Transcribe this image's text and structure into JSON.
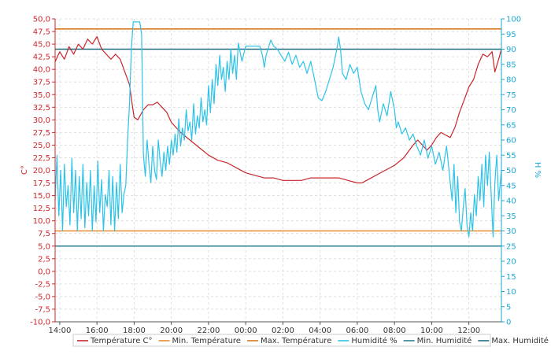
{
  "chart_data": {
    "type": "line",
    "ylabel_left": "C°",
    "ylabel_right": "H %",
    "ylim_left": [
      -10,
      50
    ],
    "ylim_right": [
      0,
      100
    ],
    "yticks_left": [
      "50,0",
      "47,5",
      "45,0",
      "42,5",
      "40,0",
      "37,5",
      "35,0",
      "32,5",
      "30,0",
      "27,5",
      "25,0",
      "22,5",
      "20,0",
      "17,5",
      "15,0",
      "12,5",
      "10,0",
      "7,5",
      "5,0",
      "2,5",
      "0,0",
      "-2,5",
      "-5,0",
      "-7,5",
      "-10,0"
    ],
    "yticks_right": [
      "100",
      "95",
      "90",
      "85",
      "80",
      "75",
      "70",
      "65",
      "60",
      "55",
      "50",
      "45",
      "40",
      "35",
      "30",
      "25",
      "20",
      "15",
      "10",
      "5",
      "0"
    ],
    "xlim_hours": [
      13.75,
      37.75
    ],
    "xticks": [
      {
        "hour": 14,
        "label": "14:00"
      },
      {
        "hour": 16,
        "label": "16:00"
      },
      {
        "hour": 18,
        "label": "18:00"
      },
      {
        "hour": 20,
        "label": "20:00"
      },
      {
        "hour": 22,
        "label": "22:00"
      },
      {
        "hour": 24,
        "label": "00:00"
      },
      {
        "hour": 26,
        "label": "02:00"
      },
      {
        "hour": 28,
        "label": "04:00"
      },
      {
        "hour": 30,
        "label": "06:00"
      },
      {
        "hour": 32,
        "label": "08:00"
      },
      {
        "hour": 34,
        "label": "10:00"
      },
      {
        "hour": 36,
        "label": "12:00"
      }
    ],
    "grid": true,
    "legend_position": "bottom",
    "series": [
      {
        "name": "Température C°",
        "axis": "left",
        "color": "#c7252b",
        "kind": "line",
        "points": [
          [
            13.75,
            41.5
          ],
          [
            14.0,
            43.5
          ],
          [
            14.25,
            42.0
          ],
          [
            14.5,
            44.5
          ],
          [
            14.75,
            43.0
          ],
          [
            15.0,
            45.0
          ],
          [
            15.25,
            44.0
          ],
          [
            15.5,
            46.0
          ],
          [
            15.75,
            45.0
          ],
          [
            16.0,
            46.5
          ],
          [
            16.25,
            44.0
          ],
          [
            16.5,
            43.0
          ],
          [
            16.75,
            42.0
          ],
          [
            17.0,
            43.0
          ],
          [
            17.25,
            42.0
          ],
          [
            17.5,
            39.5
          ],
          [
            17.75,
            37.0
          ],
          [
            17.9,
            33.0
          ],
          [
            18.0,
            30.5
          ],
          [
            18.2,
            30.0
          ],
          [
            18.5,
            32.0
          ],
          [
            18.75,
            33.0
          ],
          [
            19.0,
            33.0
          ],
          [
            19.25,
            33.5
          ],
          [
            19.5,
            32.5
          ],
          [
            19.75,
            31.5
          ],
          [
            20.0,
            29.5
          ],
          [
            20.5,
            27.5
          ],
          [
            21.0,
            26.0
          ],
          [
            21.5,
            24.5
          ],
          [
            22.0,
            23.0
          ],
          [
            22.5,
            22.0
          ],
          [
            23.0,
            21.5
          ],
          [
            23.5,
            20.5
          ],
          [
            24.0,
            19.5
          ],
          [
            24.5,
            19.0
          ],
          [
            25.0,
            18.5
          ],
          [
            25.5,
            18.5
          ],
          [
            26.0,
            18.0
          ],
          [
            26.5,
            18.0
          ],
          [
            27.0,
            18.0
          ],
          [
            27.5,
            18.5
          ],
          [
            28.0,
            18.5
          ],
          [
            28.5,
            18.5
          ],
          [
            29.0,
            18.5
          ],
          [
            29.5,
            18.0
          ],
          [
            30.0,
            17.5
          ],
          [
            30.25,
            17.5
          ],
          [
            30.5,
            18.0
          ],
          [
            31.0,
            19.0
          ],
          [
            31.5,
            20.0
          ],
          [
            32.0,
            21.0
          ],
          [
            32.5,
            22.5
          ],
          [
            33.0,
            25.0
          ],
          [
            33.25,
            26.0
          ],
          [
            33.5,
            25.0
          ],
          [
            33.75,
            24.0
          ],
          [
            34.0,
            25.0
          ],
          [
            34.25,
            26.5
          ],
          [
            34.5,
            27.5
          ],
          [
            34.75,
            27.0
          ],
          [
            35.0,
            26.5
          ],
          [
            35.25,
            28.5
          ],
          [
            35.5,
            31.5
          ],
          [
            35.75,
            34.0
          ],
          [
            36.0,
            36.5
          ],
          [
            36.25,
            38.0
          ],
          [
            36.5,
            41.0
          ],
          [
            36.75,
            43.0
          ],
          [
            37.0,
            42.5
          ],
          [
            37.25,
            43.5
          ],
          [
            37.4,
            39.5
          ],
          [
            37.6,
            42.0
          ],
          [
            37.75,
            44.0
          ]
        ]
      },
      {
        "name": "Min. Température",
        "axis": "left",
        "color": "#e88a2e",
        "kind": "hline",
        "value": 8.0
      },
      {
        "name": "Max. Température",
        "axis": "left",
        "color": "#d9781e",
        "kind": "hline",
        "value": 48.0
      },
      {
        "name": "Humidité %",
        "axis": "right",
        "color": "#2cc3e8",
        "kind": "line",
        "points": [
          [
            13.75,
            40
          ],
          [
            13.85,
            55
          ],
          [
            13.95,
            35
          ],
          [
            14.05,
            50
          ],
          [
            14.15,
            30
          ],
          [
            14.25,
            52
          ],
          [
            14.35,
            38
          ],
          [
            14.45,
            45
          ],
          [
            14.55,
            32
          ],
          [
            14.65,
            54
          ],
          [
            14.75,
            36
          ],
          [
            14.85,
            50
          ],
          [
            14.95,
            30
          ],
          [
            15.05,
            48
          ],
          [
            15.15,
            34
          ],
          [
            15.25,
            52
          ],
          [
            15.35,
            31
          ],
          [
            15.45,
            46
          ],
          [
            15.55,
            35
          ],
          [
            15.65,
            50
          ],
          [
            15.75,
            30
          ],
          [
            15.85,
            45
          ],
          [
            15.95,
            33
          ],
          [
            16.05,
            53
          ],
          [
            16.15,
            36
          ],
          [
            16.25,
            47
          ],
          [
            16.35,
            30
          ],
          [
            16.45,
            42
          ],
          [
            16.55,
            38
          ],
          [
            16.65,
            50
          ],
          [
            16.75,
            32
          ],
          [
            16.85,
            48
          ],
          [
            16.95,
            30
          ],
          [
            17.05,
            46
          ],
          [
            17.15,
            34
          ],
          [
            17.25,
            52
          ],
          [
            17.35,
            36
          ],
          [
            17.45,
            42
          ],
          [
            17.55,
            45
          ],
          [
            17.65,
            60
          ],
          [
            17.75,
            72
          ],
          [
            17.85,
            90
          ],
          [
            17.95,
            99
          ],
          [
            18.1,
            99
          ],
          [
            18.3,
            99
          ],
          [
            18.4,
            95
          ],
          [
            18.5,
            55
          ],
          [
            18.6,
            48
          ],
          [
            18.7,
            60
          ],
          [
            18.8,
            52
          ],
          [
            18.9,
            46
          ],
          [
            19.0,
            58
          ],
          [
            19.1,
            50
          ],
          [
            19.2,
            47
          ],
          [
            19.3,
            60
          ],
          [
            19.4,
            53
          ],
          [
            19.5,
            48
          ],
          [
            19.6,
            56
          ],
          [
            19.7,
            50
          ],
          [
            19.8,
            58
          ],
          [
            19.9,
            52
          ],
          [
            20.0,
            60
          ],
          [
            20.1,
            55
          ],
          [
            20.2,
            62
          ],
          [
            20.3,
            56
          ],
          [
            20.4,
            67
          ],
          [
            20.5,
            58
          ],
          [
            20.6,
            64
          ],
          [
            20.7,
            60
          ],
          [
            20.8,
            70
          ],
          [
            20.9,
            63
          ],
          [
            21.0,
            66
          ],
          [
            21.1,
            60
          ],
          [
            21.2,
            72
          ],
          [
            21.3,
            62
          ],
          [
            21.4,
            68
          ],
          [
            21.5,
            64
          ],
          [
            21.6,
            74
          ],
          [
            21.7,
            66
          ],
          [
            21.8,
            70
          ],
          [
            21.9,
            65
          ],
          [
            22.0,
            78
          ],
          [
            22.1,
            69
          ],
          [
            22.2,
            80
          ],
          [
            22.3,
            72
          ],
          [
            22.4,
            85
          ],
          [
            22.5,
            78
          ],
          [
            22.6,
            88
          ],
          [
            22.7,
            80
          ],
          [
            22.8,
            84
          ],
          [
            22.9,
            76
          ],
          [
            23.0,
            86
          ],
          [
            23.1,
            80
          ],
          [
            23.2,
            90
          ],
          [
            23.3,
            82
          ],
          [
            23.4,
            88
          ],
          [
            23.5,
            80
          ],
          [
            23.6,
            92
          ],
          [
            23.8,
            86
          ],
          [
            24.0,
            91
          ],
          [
            24.25,
            91
          ],
          [
            24.5,
            91
          ],
          [
            24.75,
            91
          ],
          [
            24.9,
            88
          ],
          [
            25.0,
            84
          ],
          [
            25.1,
            88
          ],
          [
            25.2,
            90
          ],
          [
            25.35,
            93
          ],
          [
            25.5,
            91
          ],
          [
            25.7,
            90
          ],
          [
            25.9,
            88
          ],
          [
            26.1,
            86
          ],
          [
            26.3,
            89
          ],
          [
            26.5,
            85
          ],
          [
            26.7,
            88
          ],
          [
            26.9,
            84
          ],
          [
            27.1,
            86
          ],
          [
            27.3,
            82
          ],
          [
            27.5,
            86
          ],
          [
            27.7,
            80
          ],
          [
            27.9,
            74
          ],
          [
            28.1,
            73
          ],
          [
            28.3,
            76
          ],
          [
            28.5,
            80
          ],
          [
            28.7,
            84
          ],
          [
            28.9,
            90
          ],
          [
            29.0,
            94
          ],
          [
            29.1,
            90
          ],
          [
            29.2,
            82
          ],
          [
            29.4,
            80
          ],
          [
            29.6,
            85
          ],
          [
            29.8,
            82
          ],
          [
            30.0,
            84
          ],
          [
            30.2,
            76
          ],
          [
            30.4,
            72
          ],
          [
            30.6,
            70
          ],
          [
            30.8,
            74
          ],
          [
            31.0,
            78
          ],
          [
            31.1,
            70
          ],
          [
            31.2,
            66
          ],
          [
            31.4,
            72
          ],
          [
            31.6,
            68
          ],
          [
            31.8,
            76
          ],
          [
            32.0,
            70
          ],
          [
            32.1,
            64
          ],
          [
            32.2,
            66
          ],
          [
            32.4,
            62
          ],
          [
            32.6,
            64
          ],
          [
            32.8,
            60
          ],
          [
            33.0,
            62
          ],
          [
            33.2,
            58
          ],
          [
            33.4,
            55
          ],
          [
            33.6,
            60
          ],
          [
            33.8,
            54
          ],
          [
            34.0,
            58
          ],
          [
            34.2,
            52
          ],
          [
            34.4,
            56
          ],
          [
            34.6,
            50
          ],
          [
            34.8,
            58
          ],
          [
            35.0,
            46
          ],
          [
            35.1,
            40
          ],
          [
            35.2,
            52
          ],
          [
            35.3,
            36
          ],
          [
            35.4,
            48
          ],
          [
            35.5,
            33
          ],
          [
            35.6,
            30
          ],
          [
            35.7,
            38
          ],
          [
            35.8,
            44
          ],
          [
            35.9,
            32
          ],
          [
            36.0,
            28
          ],
          [
            36.1,
            36
          ],
          [
            36.2,
            30
          ],
          [
            36.3,
            42
          ],
          [
            36.4,
            35
          ],
          [
            36.5,
            48
          ],
          [
            36.6,
            40
          ],
          [
            36.7,
            52
          ],
          [
            36.8,
            38
          ],
          [
            36.9,
            55
          ],
          [
            37.0,
            45
          ],
          [
            37.1,
            56
          ],
          [
            37.2,
            42
          ],
          [
            37.3,
            28
          ],
          [
            37.4,
            46
          ],
          [
            37.5,
            55
          ],
          [
            37.6,
            40
          ],
          [
            37.75,
            50
          ]
        ]
      },
      {
        "name": "Min. Humidité",
        "axis": "right",
        "color": "#2a7f8f",
        "kind": "hline",
        "value": 25
      },
      {
        "name": "Max. Humidité",
        "axis": "right",
        "color": "#1f6f80",
        "kind": "hline",
        "value": 90
      }
    ]
  }
}
